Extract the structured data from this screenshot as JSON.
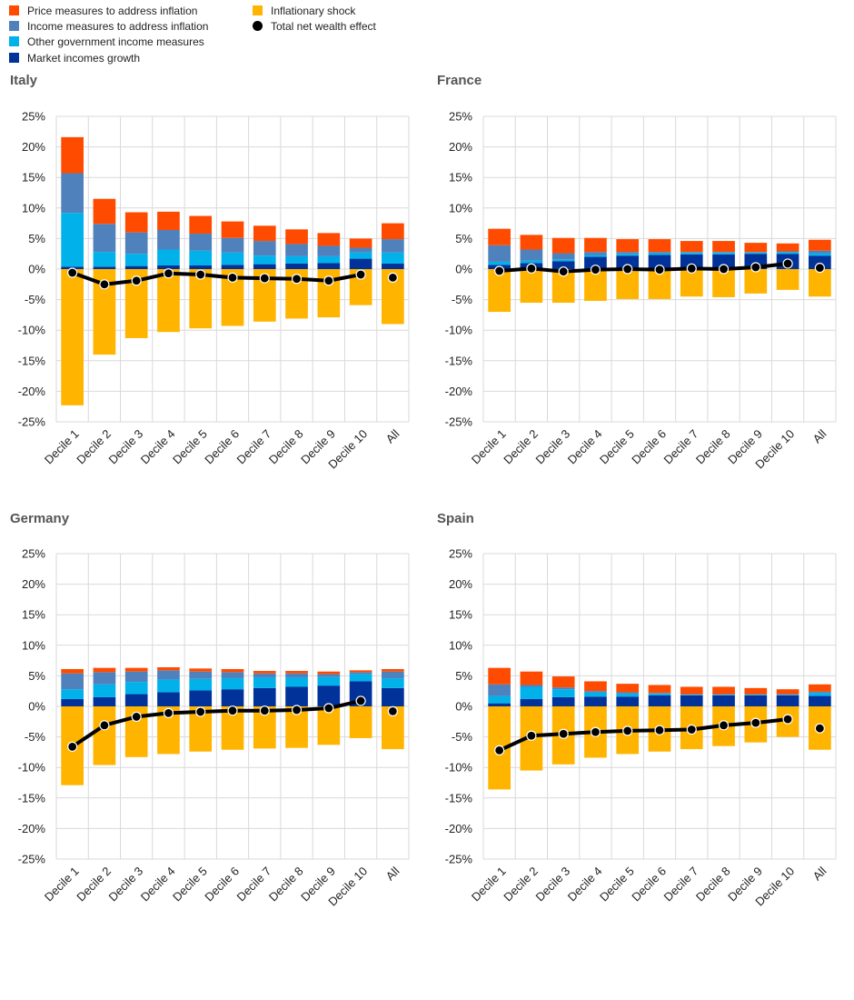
{
  "legend": {
    "items": [
      {
        "label": "Price measures to address inflation",
        "color": "#ff4b00"
      },
      {
        "label": "Income measures to address inflation",
        "color": "#4f81bd"
      },
      {
        "label": "Other government income measures",
        "color": "#00b1ea"
      },
      {
        "label": "Market incomes growth",
        "color": "#003299"
      },
      {
        "label": "Inflationary shock",
        "color": "#ffb400"
      }
    ],
    "line_label": "Total net wealth effect",
    "line_color": "#000000"
  },
  "chart_data": [
    {
      "type": "bar",
      "stacked": true,
      "title": "Italy",
      "categories": [
        "Decile 1",
        "Decile 2",
        "Decile 3",
        "Decile 4",
        "Decile 5",
        "Decile 6",
        "Decile 7",
        "Decile 8",
        "Decile 9",
        "Decile 10",
        "All"
      ],
      "ylim": [
        -25,
        25
      ],
      "ytick_step": 5,
      "ytick_format": "percent",
      "grid": true,
      "series": [
        {
          "name": "Market incomes growth",
          "color": "#003299",
          "values": [
            0.4,
            0.4,
            0.5,
            0.6,
            0.6,
            0.7,
            0.8,
            0.9,
            1.0,
            1.7,
            0.9
          ]
        },
        {
          "name": "Other government income measures",
          "color": "#00b1ea",
          "values": [
            8.8,
            2.4,
            2.0,
            2.6,
            2.4,
            2.0,
            1.4,
            1.2,
            1.1,
            1.0,
            1.8
          ]
        },
        {
          "name": "Income measures to address inflation",
          "color": "#4f81bd",
          "values": [
            6.5,
            4.6,
            3.5,
            3.2,
            2.8,
            2.4,
            2.4,
            2.0,
            1.7,
            0.8,
            2.2
          ]
        },
        {
          "name": "Price measures to address inflation",
          "color": "#ff4b00",
          "values": [
            5.9,
            4.1,
            3.3,
            3.0,
            2.9,
            2.7,
            2.5,
            2.4,
            2.1,
            1.5,
            2.6
          ]
        },
        {
          "name": "Inflationary shock",
          "color": "#ffb400",
          "values": [
            -22.3,
            -14.0,
            -11.3,
            -10.3,
            -9.7,
            -9.3,
            -8.6,
            -8.1,
            -7.9,
            -5.9,
            -9.0
          ]
        }
      ],
      "line": {
        "name": "Total net wealth effect",
        "values": [
          -0.6,
          -2.5,
          -1.9,
          -0.7,
          -0.9,
          -1.4,
          -1.5,
          -1.6,
          -1.9,
          -0.9,
          -1.4
        ]
      }
    },
    {
      "type": "bar",
      "stacked": true,
      "title": "France",
      "categories": [
        "Decile 1",
        "Decile 2",
        "Decile 3",
        "Decile 4",
        "Decile 5",
        "Decile 6",
        "Decile 7",
        "Decile 8",
        "Decile 9",
        "Decile 10",
        "All"
      ],
      "ylim": [
        -25,
        25
      ],
      "ytick_step": 5,
      "ytick_format": "percent",
      "grid": true,
      "series": [
        {
          "name": "Market incomes growth",
          "color": "#003299",
          "values": [
            0.7,
            1.0,
            1.3,
            2.0,
            2.2,
            2.3,
            2.4,
            2.4,
            2.5,
            2.5,
            2.2
          ]
        },
        {
          "name": "Other government income measures",
          "color": "#00b1ea",
          "values": [
            0.5,
            0.4,
            0.3,
            0.3,
            0.3,
            0.3,
            0.3,
            0.3,
            0.2,
            0.3,
            0.4
          ]
        },
        {
          "name": "Income measures to address inflation",
          "color": "#4f81bd",
          "values": [
            2.7,
            1.8,
            1.0,
            0.5,
            0.3,
            0.2,
            0.1,
            0.1,
            0.1,
            0.1,
            0.4
          ]
        },
        {
          "name": "Price measures to address inflation",
          "color": "#ff4b00",
          "values": [
            2.7,
            2.4,
            2.5,
            2.3,
            2.1,
            2.1,
            1.8,
            1.8,
            1.5,
            1.3,
            1.8
          ]
        },
        {
          "name": "Inflationary shock",
          "color": "#ffb400",
          "values": [
            -7.0,
            -5.5,
            -5.5,
            -5.2,
            -4.9,
            -4.9,
            -4.5,
            -4.6,
            -4.0,
            -3.4,
            -4.5
          ]
        }
      ],
      "line": {
        "name": "Total net wealth effect",
        "values": [
          -0.3,
          0.1,
          -0.4,
          -0.1,
          0.0,
          -0.1,
          0.1,
          0.0,
          0.3,
          0.9,
          0.2
        ]
      }
    },
    {
      "type": "bar",
      "stacked": true,
      "title": "Germany",
      "categories": [
        "Decile 1",
        "Decile 2",
        "Decile 3",
        "Decile 4",
        "Decile 5",
        "Decile 6",
        "Decile 7",
        "Decile 8",
        "Decile 9",
        "Decile 10",
        "All"
      ],
      "ylim": [
        -25,
        25
      ],
      "ytick_step": 5,
      "ytick_format": "percent",
      "grid": true,
      "series": [
        {
          "name": "Market incomes growth",
          "color": "#003299",
          "values": [
            1.2,
            1.5,
            2.0,
            2.3,
            2.6,
            2.8,
            3.0,
            3.2,
            3.4,
            4.1,
            3.0
          ]
        },
        {
          "name": "Other government income measures",
          "color": "#00b1ea",
          "values": [
            1.6,
            2.1,
            2.0,
            2.1,
            1.9,
            1.8,
            1.7,
            1.5,
            1.4,
            1.2,
            1.6
          ]
        },
        {
          "name": "Income measures to address inflation",
          "color": "#4f81bd",
          "values": [
            2.6,
            2.0,
            1.7,
            1.5,
            1.2,
            1.0,
            0.7,
            0.7,
            0.5,
            0.3,
            1.1
          ]
        },
        {
          "name": "Price measures to address inflation",
          "color": "#ff4b00",
          "values": [
            0.7,
            0.7,
            0.6,
            0.5,
            0.5,
            0.5,
            0.4,
            0.4,
            0.4,
            0.3,
            0.4
          ]
        },
        {
          "name": "Inflationary shock",
          "color": "#ffb400",
          "values": [
            -12.9,
            -9.6,
            -8.3,
            -7.8,
            -7.4,
            -7.1,
            -6.9,
            -6.8,
            -6.3,
            -5.2,
            -7.0
          ]
        }
      ],
      "line": {
        "name": "Total net wealth effect",
        "values": [
          -6.6,
          -3.1,
          -1.7,
          -1.1,
          -0.9,
          -0.7,
          -0.7,
          -0.6,
          -0.3,
          0.9,
          -0.8
        ]
      }
    },
    {
      "type": "bar",
      "stacked": true,
      "title": "Spain",
      "categories": [
        "Decile 1",
        "Decile 2",
        "Decile 3",
        "Decile 4",
        "Decile 5",
        "Decile 6",
        "Decile 7",
        "Decile 8",
        "Decile 9",
        "Decile 10",
        "All"
      ],
      "ylim": [
        -25,
        25
      ],
      "ytick_step": 5,
      "ytick_format": "percent",
      "grid": true,
      "series": [
        {
          "name": "Market incomes growth",
          "color": "#003299",
          "values": [
            0.5,
            1.2,
            1.5,
            1.6,
            1.6,
            1.8,
            1.8,
            1.8,
            1.8,
            1.8,
            1.7
          ]
        },
        {
          "name": "Other government income measures",
          "color": "#00b1ea",
          "values": [
            1.2,
            2.0,
            1.3,
            0.7,
            0.5,
            0.3,
            0.1,
            0.1,
            0.1,
            0.1,
            0.5
          ]
        },
        {
          "name": "Income measures to address inflation",
          "color": "#4f81bd",
          "values": [
            1.9,
            0.3,
            0.3,
            0.2,
            0.2,
            0.1,
            0.1,
            0.1,
            0.1,
            0.1,
            0.2
          ]
        },
        {
          "name": "Price measures to address inflation",
          "color": "#ff4b00",
          "values": [
            2.7,
            2.2,
            1.8,
            1.6,
            1.4,
            1.3,
            1.2,
            1.2,
            1.0,
            0.8,
            1.2
          ]
        },
        {
          "name": "Inflationary shock",
          "color": "#ffb400",
          "values": [
            -13.6,
            -10.5,
            -9.5,
            -8.4,
            -7.8,
            -7.4,
            -7.0,
            -6.5,
            -5.9,
            -5.0,
            -7.1
          ]
        }
      ],
      "line": {
        "name": "Total net wealth effect",
        "values": [
          -7.2,
          -4.8,
          -4.5,
          -4.2,
          -4.0,
          -3.9,
          -3.8,
          -3.1,
          -2.7,
          -2.1,
          -3.6
        ]
      }
    }
  ]
}
